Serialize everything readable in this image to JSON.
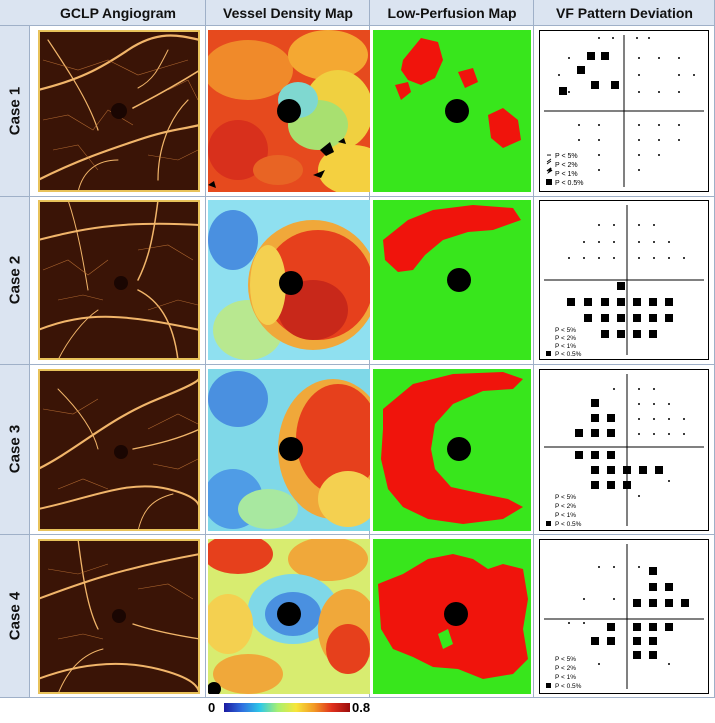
{
  "columns": [
    "GCLP Angiogram",
    "Vessel Density Map",
    "Low-Perfusion Map",
    "VF Pattern Deviation"
  ],
  "rows": [
    "Case 1",
    "Case 2",
    "Case 3",
    "Case 4"
  ],
  "legend": [
    "P < 5%",
    "P < 2%",
    "P < 1%",
    "P < 0.5%"
  ],
  "colorbar": {
    "min": "0",
    "max": "0.8"
  },
  "colors": {
    "header_bg": "#dbe4f1",
    "frame": "#e8c25a",
    "perfused": "#38e61c",
    "low_perfusion": "#f0140c",
    "fovea": "#000000"
  }
}
